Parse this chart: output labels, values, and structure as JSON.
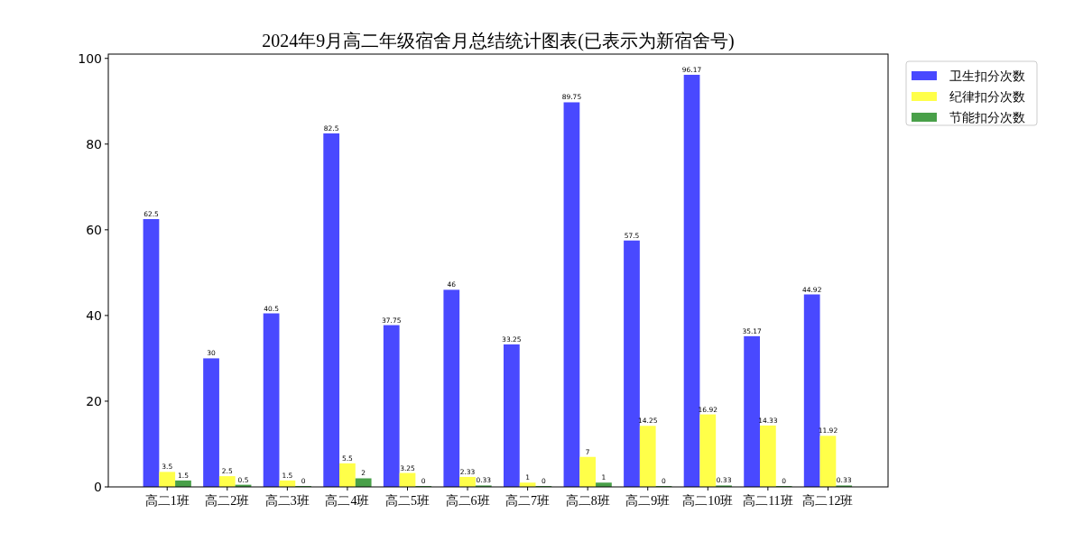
{
  "chart_data": {
    "type": "bar",
    "title": "2024年9月高二年级宿舍月总结统计图表(已表示为新宿舍号)",
    "categories": [
      "高二1班",
      "高二2班",
      "高二3班",
      "高二4班",
      "高二5班",
      "高二6班",
      "高二7班",
      "高二8班",
      "高二9班",
      "高二10班",
      "高二11班",
      "高二12班"
    ],
    "series": [
      {
        "name": "卫生扣分次数",
        "color": "#4949ff",
        "values": [
          62.5,
          30,
          40.5,
          82.5,
          37.75,
          46,
          33.25,
          89.75,
          57.5,
          96.17,
          35.17,
          44.92
        ]
      },
      {
        "name": "纪律扣分次数",
        "color": "#ffff49",
        "values": [
          3.5,
          2.5,
          1.5,
          5.5,
          3.25,
          2.33,
          1,
          7,
          14.25,
          16.92,
          14.33,
          11.92
        ]
      },
      {
        "name": "节能扣分次数",
        "color": "#49a049",
        "values": [
          1.5,
          0.5,
          0,
          2,
          0,
          0.33,
          0,
          1,
          0,
          0.33,
          0,
          0.33
        ]
      }
    ],
    "ylim": [
      0,
      101
    ],
    "yticks": [
      0,
      20,
      40,
      60,
      80,
      100
    ],
    "data_labels": true,
    "legend": "top right",
    "grid": false
  }
}
